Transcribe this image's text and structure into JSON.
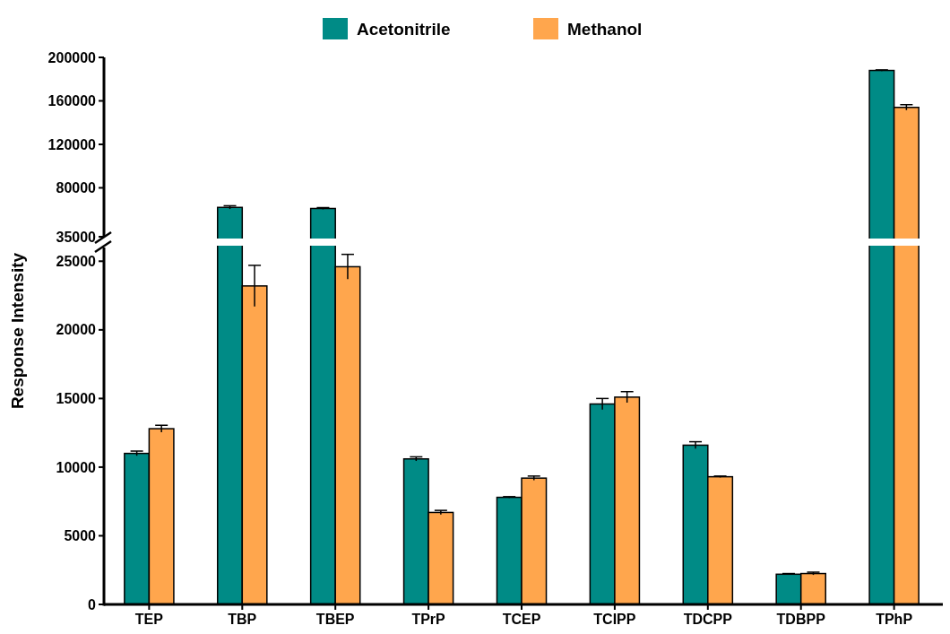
{
  "chart_data": [
    {
      "type": "bar",
      "categories": [
        "TEP",
        "TBP",
        "TBEP",
        "TPrP",
        "TCEP",
        "TCIPP",
        "TDCPP",
        "TDBPP",
        "TPhP"
      ],
      "ylim": [
        35000,
        200000
      ],
      "yticks": [
        35000,
        80000,
        120000,
        160000,
        200000
      ],
      "tick_labels": "y",
      "series": [
        {
          "color": "#008b86",
          "values": [
            null,
            62000,
            61000,
            null,
            null,
            null,
            null,
            null,
            188000
          ],
          "errors": [
            null,
            1500,
            800,
            null,
            null,
            null,
            null,
            null,
            500
          ]
        },
        {
          "color": "#ffa64d",
          "values": [
            null,
            null,
            null,
            null,
            null,
            null,
            null,
            null,
            154000
          ],
          "errors": [
            null,
            null,
            null,
            null,
            null,
            null,
            null,
            null,
            2500
          ]
        }
      ]
    },
    {
      "type": "bar",
      "categories": [
        "TEP",
        "TBP",
        "TBEP",
        "TPrP",
        "TCEP",
        "TCIPP",
        "TDCPP",
        "TDBPP",
        "TPhP"
      ],
      "ylabel": "Response Intensity",
      "ylim": [
        0,
        26000
      ],
      "yticks": [
        0,
        5000,
        10000,
        15000,
        20000,
        25000
      ],
      "legend": "top",
      "series": [
        {
          "name": "Acetonitrile",
          "color": "#008b86",
          "values": [
            11000,
            null,
            null,
            10600,
            7800,
            14600,
            11600,
            2200,
            null
          ],
          "errors": [
            170,
            null,
            null,
            150,
            50,
            400,
            250,
            50,
            null
          ]
        },
        {
          "name": "Methanol",
          "color": "#ffa64d",
          "values": [
            12800,
            23200,
            24600,
            6700,
            9200,
            15100,
            9300,
            2250,
            null
          ],
          "errors": [
            250,
            1500,
            900,
            150,
            150,
            400,
            50,
            100,
            null
          ]
        }
      ]
    }
  ]
}
